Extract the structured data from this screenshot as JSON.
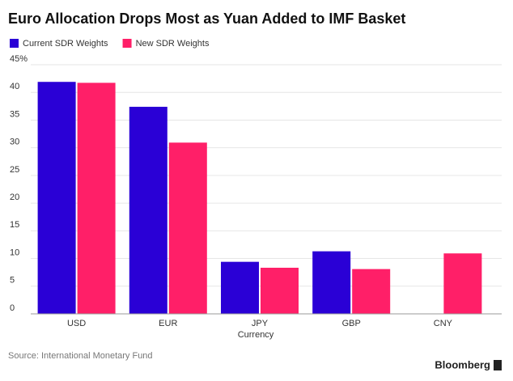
{
  "chart_data": {
    "type": "bar",
    "title": "Euro Allocation Drops Most as Yuan Added to IMF Basket",
    "categories": [
      "USD",
      "EUR",
      "JPY",
      "GBP",
      "CNY"
    ],
    "series": [
      {
        "name": "Current SDR Weights",
        "color": "#2a00d6",
        "values": [
          41.9,
          37.4,
          9.4,
          11.3,
          null
        ]
      },
      {
        "name": "New SDR Weights",
        "color": "#ff1f68",
        "values": [
          41.73,
          30.93,
          8.33,
          8.09,
          10.92
        ]
      }
    ],
    "x_label": "Currency",
    "ylim": [
      0,
      45
    ],
    "yticks": [
      0,
      5,
      10,
      15,
      20,
      25,
      30,
      35,
      40,
      {
        "value": 45,
        "label": "45%"
      }
    ],
    "grid": true,
    "source": "Source: International Monetary Fund",
    "brand": "Bloomberg"
  }
}
